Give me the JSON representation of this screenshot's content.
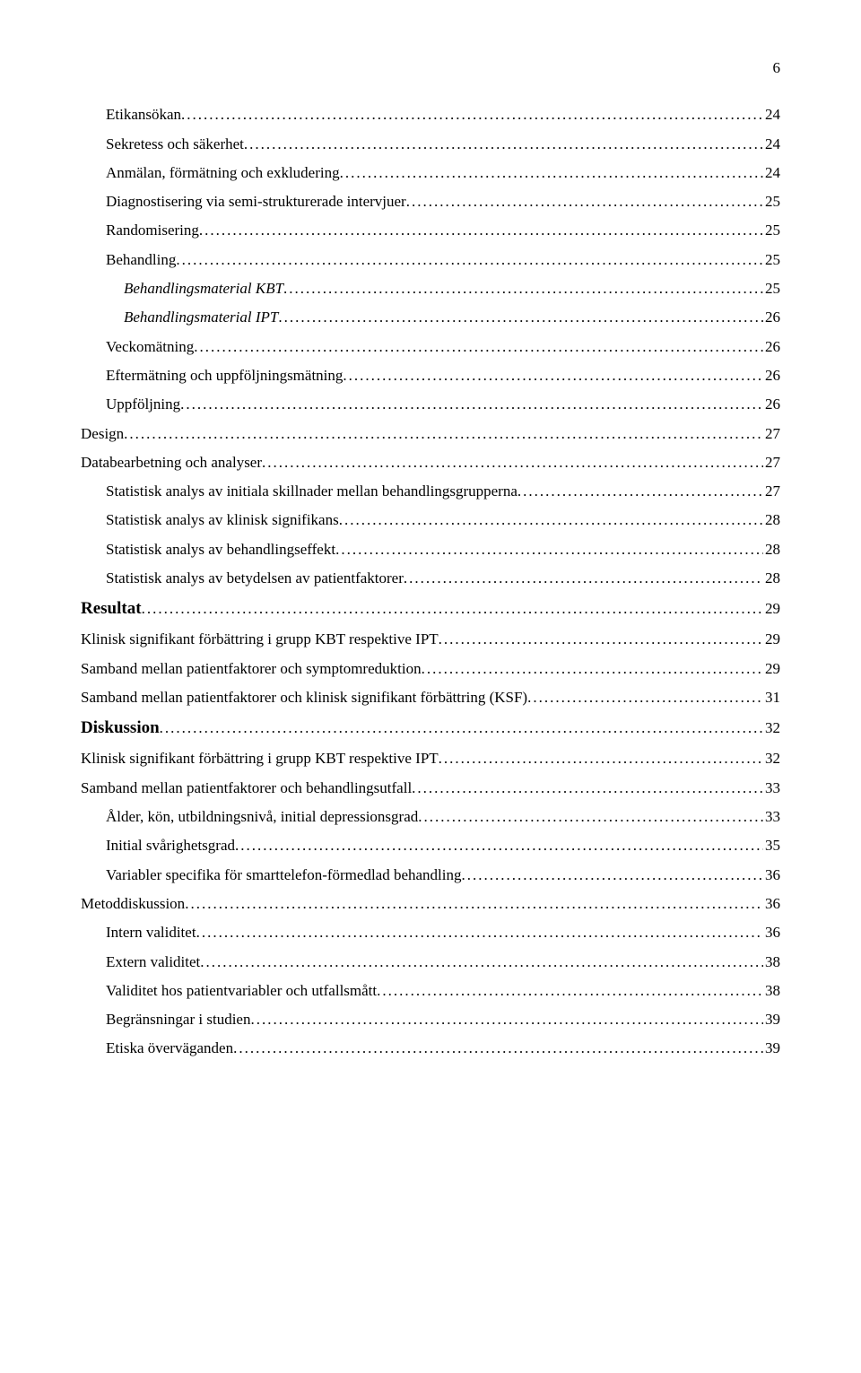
{
  "page_number": "6",
  "entries": [
    {
      "label": "Etikansökan",
      "page": "24",
      "level": 2,
      "italic": false,
      "bold": false
    },
    {
      "label": "Sekretess och säkerhet",
      "page": "24",
      "level": 2,
      "italic": false,
      "bold": false
    },
    {
      "label": "Anmälan, förmätning och exkludering",
      "page": "24",
      "level": 2,
      "italic": false,
      "bold": false
    },
    {
      "label": "Diagnostisering via semi-strukturerade intervjuer",
      "page": "25",
      "level": 2,
      "italic": false,
      "bold": false
    },
    {
      "label": "Randomisering",
      "page": "25",
      "level": 2,
      "italic": false,
      "bold": false
    },
    {
      "label": "Behandling",
      "page": "25",
      "level": 2,
      "italic": false,
      "bold": false
    },
    {
      "label": "Behandlingsmaterial KBT",
      "page": "25",
      "level": 3,
      "italic": true,
      "bold": false
    },
    {
      "label": "Behandlingsmaterial IPT",
      "page": "26",
      "level": 3,
      "italic": true,
      "bold": false
    },
    {
      "label": "Veckomätning",
      "page": "26",
      "level": 2,
      "italic": false,
      "bold": false
    },
    {
      "label": "Eftermätning och uppföljningsmätning",
      "page": "26",
      "level": 2,
      "italic": false,
      "bold": false
    },
    {
      "label": "Uppföljning",
      "page": "26",
      "level": 2,
      "italic": false,
      "bold": false
    },
    {
      "label": "Design",
      "page": "27",
      "level": 1,
      "italic": false,
      "bold": false
    },
    {
      "label": "Databearbetning och analyser",
      "page": "27",
      "level": 1,
      "italic": false,
      "bold": false
    },
    {
      "label": "Statistisk analys av initiala skillnader mellan behandlingsgrupperna",
      "page": "27",
      "level": 2,
      "italic": false,
      "bold": false
    },
    {
      "label": "Statistisk analys av klinisk signifikans",
      "page": "28",
      "level": 2,
      "italic": false,
      "bold": false
    },
    {
      "label": "Statistisk analys av behandlingseffekt",
      "page": "28",
      "level": 2,
      "italic": false,
      "bold": false
    },
    {
      "label": "Statistisk analys av betydelsen av patientfaktorer",
      "page": "28",
      "level": 2,
      "italic": false,
      "bold": false
    },
    {
      "label": "Resultat",
      "page": "29",
      "level": 0,
      "italic": false,
      "bold": true
    },
    {
      "label": "Klinisk signifikant förbättring i grupp KBT respektive IPT",
      "page": "29",
      "level": 1,
      "italic": false,
      "bold": false
    },
    {
      "label": "Samband mellan patientfaktorer och symptomreduktion",
      "page": "29",
      "level": 1,
      "italic": false,
      "bold": false
    },
    {
      "label": "Samband mellan patientfaktorer och klinisk signifikant förbättring (KSF)",
      "page": "31",
      "level": 1,
      "italic": false,
      "bold": false
    },
    {
      "label": "Diskussion",
      "page": "32",
      "level": 0,
      "italic": false,
      "bold": true
    },
    {
      "label": "Klinisk signifikant förbättring i grupp KBT respektive IPT",
      "page": "32",
      "level": 1,
      "italic": false,
      "bold": false
    },
    {
      "label": "Samband mellan patientfaktorer och behandlingsutfall",
      "page": "33",
      "level": 1,
      "italic": false,
      "bold": false
    },
    {
      "label": "Ålder, kön, utbildningsnivå, initial depressionsgrad",
      "page": "33",
      "level": 2,
      "italic": false,
      "bold": false
    },
    {
      "label": "Initial svårighetsgrad",
      "page": "35",
      "level": 2,
      "italic": false,
      "bold": false
    },
    {
      "label": "Variabler specifika för smarttelefon-förmedlad behandling",
      "page": "36",
      "level": 2,
      "italic": false,
      "bold": false
    },
    {
      "label": "Metoddiskussion",
      "page": "36",
      "level": 1,
      "italic": false,
      "bold": false
    },
    {
      "label": "Intern validitet",
      "page": "36",
      "level": 2,
      "italic": false,
      "bold": false
    },
    {
      "label": "Extern validitet",
      "page": "38",
      "level": 2,
      "italic": false,
      "bold": false
    },
    {
      "label": "Validitet hos patientvariabler och utfallsmått",
      "page": "38",
      "level": 2,
      "italic": false,
      "bold": false
    },
    {
      "label": "Begränsningar i studien",
      "page": "39",
      "level": 2,
      "italic": false,
      "bold": false
    },
    {
      "label": "Etiska överväganden",
      "page": "39",
      "level": 2,
      "italic": false,
      "bold": false
    }
  ]
}
